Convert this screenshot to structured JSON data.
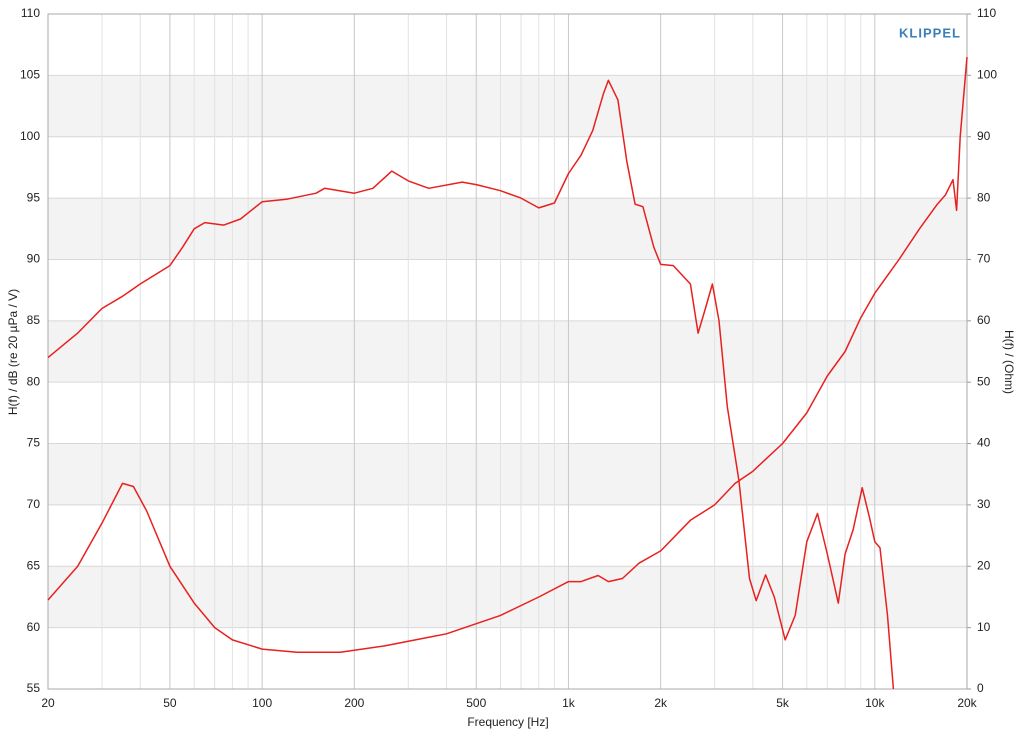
{
  "chart_data": {
    "type": "line",
    "logo": "KLIPPEL",
    "xlabel": "Frequency [Hz]",
    "ylabel": "H(f) / dB (re 20 µPa / V)",
    "y2label": "H(f) / (Ohm)",
    "xscale": "log",
    "xlim": [
      20,
      20000
    ],
    "xticks": [
      20,
      50,
      100,
      200,
      500,
      {
        "value": 1000,
        "label": "1k"
      },
      {
        "value": 2000,
        "label": "2k"
      },
      {
        "value": 5000,
        "label": "5k"
      },
      {
        "value": 10000,
        "label": "10k"
      },
      {
        "value": 20000,
        "label": "20k"
      }
    ],
    "xminorticks": [
      30,
      40,
      60,
      70,
      80,
      90,
      300,
      400,
      600,
      700,
      800,
      900,
      3000,
      4000,
      6000,
      7000,
      8000,
      9000
    ],
    "ylim": [
      55,
      110
    ],
    "yticks": [
      55,
      60,
      65,
      70,
      75,
      80,
      85,
      90,
      95,
      100,
      105,
      110
    ],
    "y2lim": [
      0,
      110
    ],
    "y2ticks": [
      0,
      10,
      20,
      30,
      40,
      50,
      60,
      70,
      80,
      90,
      100,
      110
    ],
    "grid": true,
    "series": [
      {
        "color": "#e8201e",
        "axis": "y",
        "x": [
          20,
          25,
          30,
          35,
          40,
          50,
          55,
          60,
          65,
          75,
          85,
          100,
          120,
          150,
          160,
          200,
          230,
          265,
          300,
          350,
          450,
          500,
          600,
          700,
          800,
          900,
          1000,
          1100,
          1200,
          1300,
          1350,
          1450,
          1550,
          1650,
          1750,
          1900,
          2000,
          2200,
          2500,
          2650,
          2800,
          2950,
          3100,
          3300,
          3600,
          3900,
          4100,
          4400,
          4700,
          5100,
          5500,
          6000,
          6500,
          7000,
          7600,
          8000,
          8500,
          9100,
          9600,
          10000,
          10400,
          11000,
          11500
        ],
        "values": [
          82,
          84,
          86,
          87,
          88,
          89.5,
          91,
          92.5,
          93,
          92.8,
          93.3,
          94.7,
          94.9,
          95.4,
          95.8,
          95.4,
          95.8,
          97.2,
          96.4,
          95.8,
          96.3,
          96.1,
          95.6,
          95,
          94.2,
          94.6,
          97,
          98.5,
          100.5,
          103.5,
          104.6,
          103,
          98,
          94.5,
          94.3,
          91,
          89.6,
          89.5,
          88,
          84,
          86,
          88,
          85,
          78,
          72,
          64,
          62.2,
          64.3,
          62.5,
          59,
          61,
          67,
          69.3,
          66,
          62,
          66,
          68,
          71.4,
          69,
          67,
          66.5,
          61,
          55
        ]
      },
      {
        "color": "#e8201e",
        "axis": "y2",
        "x": [
          20,
          25,
          30,
          35,
          38,
          42,
          50,
          60,
          70,
          80,
          100,
          130,
          180,
          250,
          400,
          600,
          800,
          1000,
          1100,
          1250,
          1350,
          1500,
          1700,
          2000,
          2500,
          3000,
          3500,
          4000,
          5000,
          6000,
          7000,
          8000,
          9000,
          10000,
          12000,
          14000,
          16000,
          17000,
          18000,
          18500,
          19000,
          20000
        ],
        "values": [
          14.5,
          20,
          27,
          33.5,
          33,
          29,
          20,
          14,
          10,
          8,
          6.5,
          6,
          6,
          7,
          9,
          12,
          15,
          17.5,
          17.5,
          18.5,
          17.5,
          18,
          20.5,
          22.5,
          27.5,
          30,
          33.5,
          35.5,
          40,
          45,
          51,
          55,
          60.5,
          64.5,
          70,
          75,
          79,
          80.5,
          83,
          78,
          90,
          103
        ]
      }
    ]
  }
}
